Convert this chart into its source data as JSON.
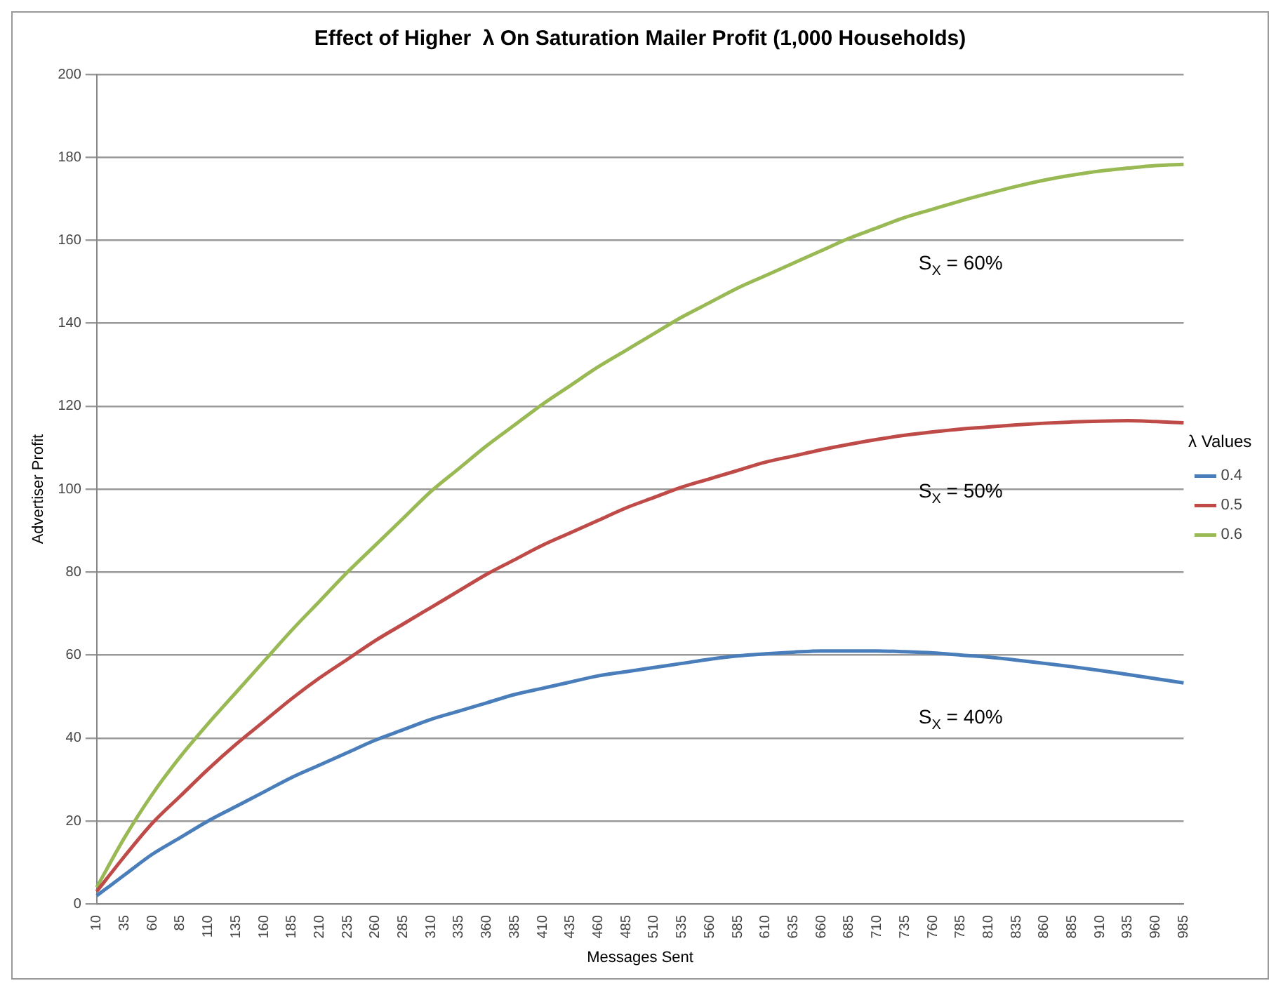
{
  "chart_data": {
    "type": "line",
    "title": "Effect of Higher  λ On Saturation Mailer Profit (1,000 Households)",
    "xlabel": "Messages Sent",
    "ylabel": "Advertiser Profit",
    "legend_title": "λ Values",
    "categories": [
      "10",
      "35",
      "60",
      "85",
      "110",
      "135",
      "160",
      "185",
      "210",
      "235",
      "260",
      "285",
      "310",
      "335",
      "360",
      "385",
      "410",
      "435",
      "460",
      "485",
      "510",
      "535",
      "560",
      "585",
      "610",
      "635",
      "660",
      "685",
      "710",
      "735",
      "760",
      "785",
      "810",
      "835",
      "860",
      "885",
      "910",
      "935",
      "960",
      "985"
    ],
    "series": [
      {
        "name": "0.4",
        "color": "#4a7ebb",
        "values": [
          2,
          7,
          12,
          16,
          20,
          23.5,
          27,
          30.5,
          33.5,
          36.5,
          39.5,
          42,
          44.5,
          46.5,
          48.5,
          50.5,
          52,
          53.5,
          55,
          56,
          57,
          58,
          59,
          59.8,
          60.3,
          60.7,
          61,
          61,
          61,
          60.8,
          60.5,
          60,
          59.5,
          58.8,
          58,
          57.2,
          56.3,
          55.3,
          54.3,
          53.3
        ]
      },
      {
        "name": "0.5",
        "color": "#be4b48",
        "values": [
          3,
          11.5,
          19.5,
          26,
          32.5,
          38.5,
          44,
          49.5,
          54.5,
          59,
          63.5,
          67.5,
          71.5,
          75.5,
          79.5,
          83,
          86.5,
          89.5,
          92.5,
          95.5,
          98,
          100.5,
          102.5,
          104.5,
          106.5,
          108,
          109.5,
          110.8,
          112,
          113,
          113.8,
          114.5,
          115,
          115.5,
          115.9,
          116.2,
          116.4,
          116.5,
          116.3,
          116
        ]
      },
      {
        "name": "0.6",
        "color": "#98b954",
        "values": [
          4,
          16,
          26.5,
          35.5,
          43.5,
          51,
          58.5,
          66,
          73,
          80,
          86.5,
          93,
          99.5,
          105,
          110.5,
          115.5,
          120.5,
          125,
          129.5,
          133.5,
          137.5,
          141.5,
          145,
          148.5,
          151.5,
          154.5,
          157.5,
          160.5,
          163,
          165.5,
          167.5,
          169.5,
          171.3,
          173,
          174.5,
          175.7,
          176.7,
          177.4,
          178,
          178.3
        ]
      }
    ],
    "ylim": [
      0,
      200
    ],
    "yticks": [
      0,
      20,
      40,
      60,
      80,
      100,
      120,
      140,
      160,
      180,
      200
    ],
    "grid": "y",
    "legend": "right",
    "marker": "none",
    "line_style": "solid",
    "annotations": [
      "S$_{X}$ = 60%",
      "S$_{X}$ = 50%",
      "S$_{X}$ = 40%"
    ]
  }
}
